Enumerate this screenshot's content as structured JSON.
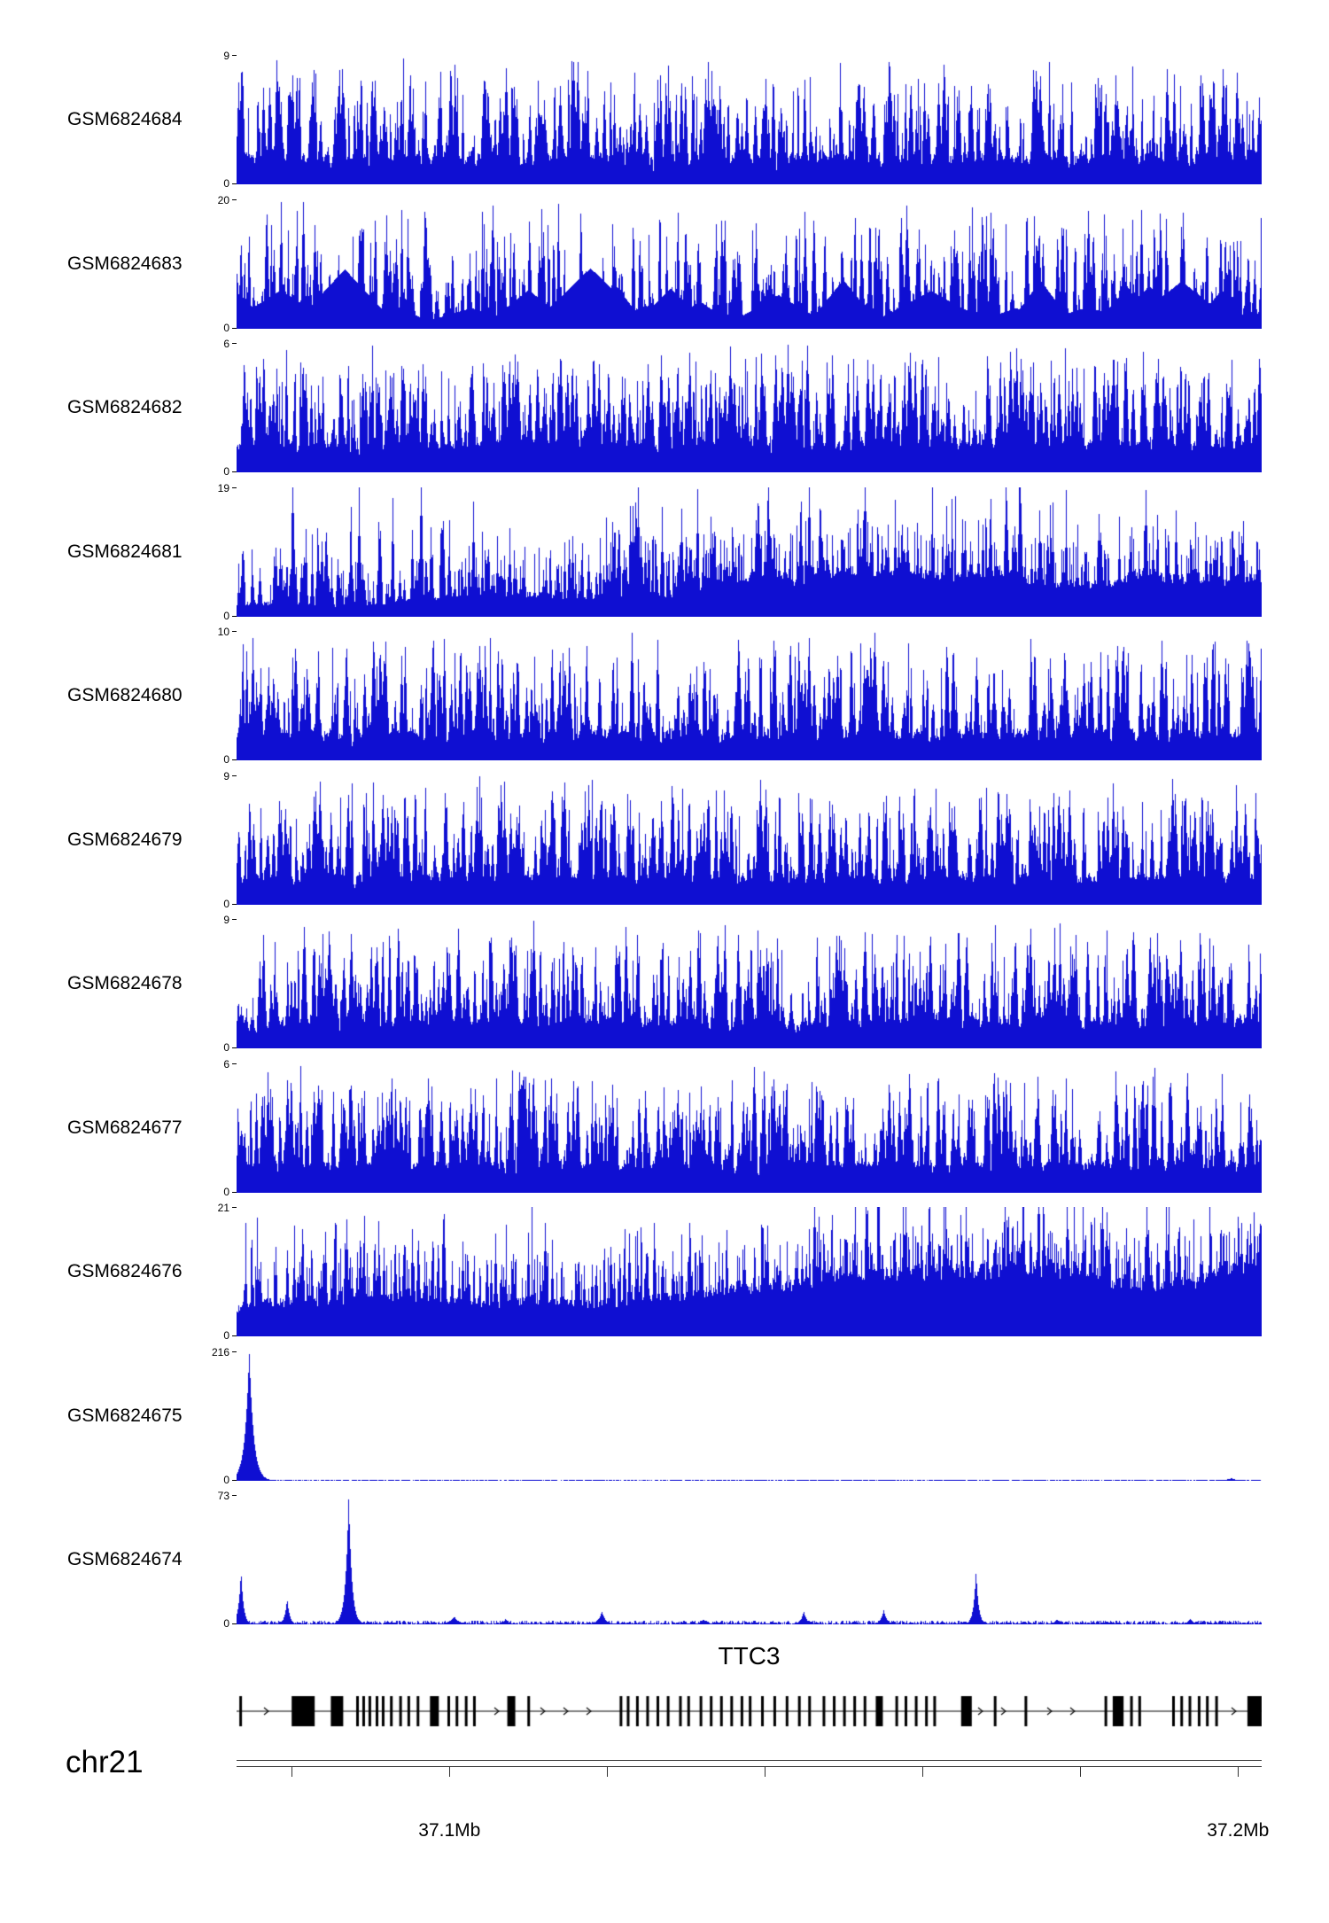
{
  "chart_data": {
    "type": "area",
    "title": "",
    "description": "Genome browser coverage figure: 11 GSM sample signal tracks over chr21 around the TTC3 gene",
    "signal_color": "#0f0fd2",
    "region": {
      "chromosome": "chr21",
      "xlim_mb": [
        37.073,
        37.203
      ]
    },
    "x_axis": {
      "tick_interval_mb": 0.02,
      "labeled_ticks": [
        {
          "value_mb": 37.1,
          "label": "37.1Mb"
        },
        {
          "value_mb": 37.2,
          "label": "37.2Mb"
        }
      ]
    },
    "tracks": [
      {
        "name": "GSM6824684",
        "ymin": 0,
        "ymax": 9,
        "pattern": "spiky",
        "seed": 684,
        "density": 1.0,
        "base": 1.6,
        "amp": 1.0
      },
      {
        "name": "GSM6824683",
        "ymin": 0,
        "ymax": 20,
        "pattern": "triangles",
        "seed": 683
      },
      {
        "name": "GSM6824682",
        "ymin": 0,
        "ymax": 6,
        "pattern": "spiky",
        "seed": 682,
        "density": 1.3,
        "base": 2.4,
        "amp": 1.0
      },
      {
        "name": "GSM6824681",
        "ymin": 0,
        "ymax": 19,
        "pattern": "mounds",
        "seed": 681,
        "trend": [
          0.15,
          0.72
        ]
      },
      {
        "name": "GSM6824680",
        "ymin": 0,
        "ymax": 10,
        "pattern": "spiky",
        "seed": 680,
        "density": 1.0,
        "base": 1.8,
        "amp": 1.0
      },
      {
        "name": "GSM6824679",
        "ymin": 0,
        "ymax": 9,
        "pattern": "spiky",
        "seed": 679,
        "density": 1.1,
        "base": 2.0,
        "amp": 1.0
      },
      {
        "name": "GSM6824678",
        "ymin": 0,
        "ymax": 9,
        "pattern": "spiky",
        "seed": 678,
        "density": 1.1,
        "base": 2.0,
        "amp": 1.0
      },
      {
        "name": "GSM6824677",
        "ymin": 0,
        "ymax": 6,
        "pattern": "spiky",
        "seed": 677,
        "density": 1.3,
        "base": 2.6,
        "amp": 1.0
      },
      {
        "name": "GSM6824676",
        "ymin": 0,
        "ymax": 21,
        "pattern": "mounds",
        "seed": 676,
        "trend": [
          0.3,
          0.5
        ]
      },
      {
        "name": "GSM6824675",
        "ymin": 0,
        "ymax": 216,
        "pattern": "peaks",
        "seed": 675,
        "baseline": 0.006,
        "peaks": [
          {
            "x": 0.012,
            "h": 1.0,
            "w": 0.007
          },
          {
            "x": 0.97,
            "h": 0.02,
            "w": 0.01
          }
        ]
      },
      {
        "name": "GSM6824674",
        "ymin": 0,
        "ymax": 73,
        "pattern": "peaks",
        "seed": 674,
        "baseline": 0.018,
        "peaks": [
          {
            "x": 0.004,
            "h": 0.42,
            "w": 0.004
          },
          {
            "x": 0.049,
            "h": 0.2,
            "w": 0.004
          },
          {
            "x": 0.109,
            "h": 1.0,
            "w": 0.005
          },
          {
            "x": 0.212,
            "h": 0.06,
            "w": 0.008
          },
          {
            "x": 0.262,
            "h": 0.04,
            "w": 0.006
          },
          {
            "x": 0.356,
            "h": 0.1,
            "w": 0.006
          },
          {
            "x": 0.455,
            "h": 0.04,
            "w": 0.006
          },
          {
            "x": 0.553,
            "h": 0.1,
            "w": 0.005
          },
          {
            "x": 0.631,
            "h": 0.11,
            "w": 0.005
          },
          {
            "x": 0.721,
            "h": 0.42,
            "w": 0.004
          },
          {
            "x": 0.8,
            "h": 0.04,
            "w": 0.006
          },
          {
            "x": 0.93,
            "h": 0.04,
            "w": 0.006
          }
        ]
      }
    ],
    "gene_track": {
      "gene_name": "TTC3",
      "strand": "right",
      "exons": [
        {
          "p": 0.004,
          "w": 3
        },
        {
          "p": 0.065,
          "w": 26
        },
        {
          "p": 0.098,
          "w": 14
        },
        {
          "p": 0.118,
          "w": 3
        },
        {
          "p": 0.124,
          "w": 3
        },
        {
          "p": 0.13,
          "w": 3
        },
        {
          "p": 0.137,
          "w": 3
        },
        {
          "p": 0.143,
          "w": 3
        },
        {
          "p": 0.151,
          "w": 3
        },
        {
          "p": 0.16,
          "w": 3
        },
        {
          "p": 0.168,
          "w": 3
        },
        {
          "p": 0.177,
          "w": 3
        },
        {
          "p": 0.193,
          "w": 10
        },
        {
          "p": 0.207,
          "w": 3
        },
        {
          "p": 0.215,
          "w": 3
        },
        {
          "p": 0.224,
          "w": 3
        },
        {
          "p": 0.232,
          "w": 3
        },
        {
          "p": 0.268,
          "w": 9
        },
        {
          "p": 0.285,
          "w": 3
        },
        {
          "p": 0.375,
          "w": 3
        },
        {
          "p": 0.382,
          "w": 3
        },
        {
          "p": 0.391,
          "w": 3
        },
        {
          "p": 0.401,
          "w": 3
        },
        {
          "p": 0.411,
          "w": 3
        },
        {
          "p": 0.421,
          "w": 3
        },
        {
          "p": 0.433,
          "w": 3
        },
        {
          "p": 0.441,
          "w": 3
        },
        {
          "p": 0.453,
          "w": 3
        },
        {
          "p": 0.463,
          "w": 3
        },
        {
          "p": 0.473,
          "w": 3
        },
        {
          "p": 0.483,
          "w": 3
        },
        {
          "p": 0.493,
          "w": 3
        },
        {
          "p": 0.501,
          "w": 3
        },
        {
          "p": 0.513,
          "w": 3
        },
        {
          "p": 0.525,
          "w": 3
        },
        {
          "p": 0.537,
          "w": 3
        },
        {
          "p": 0.549,
          "w": 3
        },
        {
          "p": 0.559,
          "w": 3
        },
        {
          "p": 0.573,
          "w": 3
        },
        {
          "p": 0.583,
          "w": 3
        },
        {
          "p": 0.593,
          "w": 3
        },
        {
          "p": 0.603,
          "w": 3
        },
        {
          "p": 0.613,
          "w": 3
        },
        {
          "p": 0.627,
          "w": 8
        },
        {
          "p": 0.644,
          "w": 3
        },
        {
          "p": 0.653,
          "w": 3
        },
        {
          "p": 0.663,
          "w": 3
        },
        {
          "p": 0.673,
          "w": 3
        },
        {
          "p": 0.681,
          "w": 3
        },
        {
          "p": 0.712,
          "w": 12
        },
        {
          "p": 0.74,
          "w": 3
        },
        {
          "p": 0.77,
          "w": 3
        },
        {
          "p": 0.848,
          "w": 3
        },
        {
          "p": 0.856,
          "w": 3
        },
        {
          "p": 0.86,
          "w": 8
        },
        {
          "p": 0.864,
          "w": 3
        },
        {
          "p": 0.873,
          "w": 3
        },
        {
          "p": 0.881,
          "w": 3
        },
        {
          "p": 0.914,
          "w": 3
        },
        {
          "p": 0.922,
          "w": 3
        },
        {
          "p": 0.93,
          "w": 3
        },
        {
          "p": 0.939,
          "w": 3
        },
        {
          "p": 0.947,
          "w": 3
        },
        {
          "p": 0.956,
          "w": 3
        },
        {
          "p": 0.993,
          "w": 16
        }
      ]
    }
  }
}
